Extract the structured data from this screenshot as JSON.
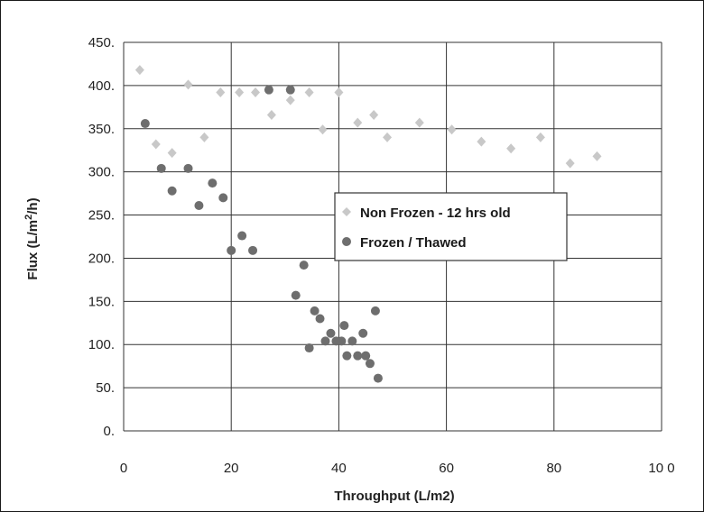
{
  "chart_data": {
    "type": "scatter",
    "xlabel": "Throughput (L/m2)",
    "ylabel_main": "Flux (L/m",
    "ylabel_sup": "2",
    "ylabel_end": "/h)",
    "xlim": [
      0,
      100
    ],
    "ylim": [
      0,
      450
    ],
    "x_ticks": [
      0,
      20,
      40,
      60,
      80,
      100
    ],
    "x_tick_labels": [
      "0",
      "20",
      "40",
      "60",
      "80",
      "10 0"
    ],
    "y_ticks": [
      0,
      50,
      100,
      150,
      200,
      250,
      300,
      350,
      400,
      450
    ],
    "y_tick_labels": [
      "0.",
      "50.",
      "100.",
      "150.",
      "200.",
      "250.",
      "300.",
      "350.",
      "400.",
      "450."
    ],
    "grid": true,
    "legend_position": "center-right",
    "series": [
      {
        "name": "Non Frozen - 12 hrs old",
        "marker": "diamond",
        "color": "#c8c8c8",
        "points": [
          [
            3,
            418
          ],
          [
            6,
            332
          ],
          [
            9,
            322
          ],
          [
            12,
            401
          ],
          [
            15,
            340
          ],
          [
            18,
            392
          ],
          [
            21.5,
            392
          ],
          [
            24.5,
            392
          ],
          [
            27.5,
            366
          ],
          [
            31,
            383
          ],
          [
            34.5,
            392
          ],
          [
            37,
            349
          ],
          [
            40,
            392
          ],
          [
            43.5,
            357
          ],
          [
            46.5,
            366
          ],
          [
            49,
            340
          ],
          [
            55,
            357
          ],
          [
            61,
            349
          ],
          [
            66.5,
            335
          ],
          [
            72,
            327
          ],
          [
            77.5,
            340
          ],
          [
            83,
            310
          ],
          [
            88,
            318
          ]
        ]
      },
      {
        "name": "Frozen / Thawed",
        "marker": "circle",
        "color": "#6e6e6e",
        "points": [
          [
            4,
            356
          ],
          [
            7,
            304
          ],
          [
            9,
            278
          ],
          [
            12,
            304
          ],
          [
            14,
            261
          ],
          [
            16.5,
            287
          ],
          [
            18.5,
            270
          ],
          [
            20,
            209
          ],
          [
            22,
            226
          ],
          [
            24,
            209
          ],
          [
            27,
            395
          ],
          [
            31,
            395
          ],
          [
            32,
            157
          ],
          [
            33.5,
            192
          ],
          [
            34.5,
            96
          ],
          [
            35.5,
            139
          ],
          [
            36.5,
            130
          ],
          [
            37.5,
            104
          ],
          [
            38.5,
            113
          ],
          [
            39.5,
            104
          ],
          [
            40.5,
            104
          ],
          [
            41,
            122
          ],
          [
            41.5,
            87
          ],
          [
            42.5,
            104
          ],
          [
            43.5,
            87
          ],
          [
            44.5,
            113
          ],
          [
            45,
            87
          ],
          [
            45.8,
            78
          ],
          [
            46.8,
            139
          ],
          [
            47.3,
            61
          ]
        ]
      }
    ]
  }
}
